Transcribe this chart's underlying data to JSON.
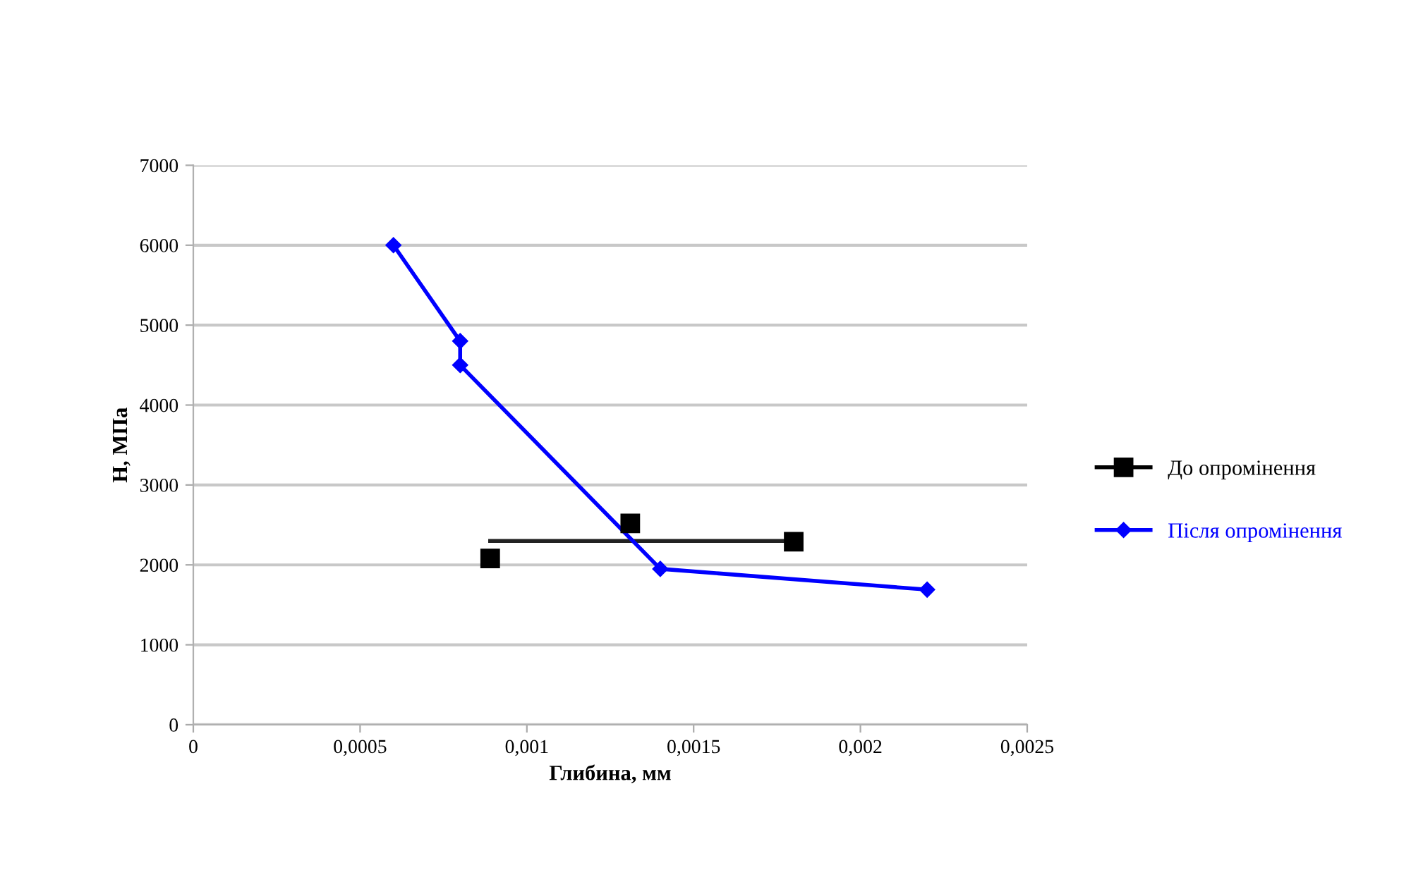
{
  "chart_data": {
    "type": "line",
    "xlabel": "Глибина, мм",
    "ylabel": "H, МПа",
    "xlim": [
      0,
      0.0025
    ],
    "xticks": [
      0,
      {
        "value": 0.0005,
        "label": "0,0005"
      },
      {
        "value": 0.001,
        "label": "0,001"
      },
      {
        "value": 0.0015,
        "label": "0,0015"
      },
      {
        "value": 0.002,
        "label": "0,002"
      },
      {
        "value": 0.0025,
        "label": "0,0025"
      }
    ],
    "ylim": [
      0,
      7000
    ],
    "yticks": [
      0,
      1000,
      2000,
      3000,
      4000,
      5000,
      6000,
      7000
    ],
    "grid": "y",
    "legend": "right",
    "series": [
      {
        "name": "До опромінення",
        "type": "scatter",
        "marker": "square",
        "color": "#000000",
        "x": [
          0.00089,
          0.00131,
          0.0018
        ],
        "values": [
          2080,
          2520,
          2290
        ]
      },
      {
        "marker": "none",
        "color": "#222222",
        "x": [
          0.00089,
          0.0018
        ],
        "values": [
          2300,
          2300
        ]
      },
      {
        "name": "Після опромінення",
        "marker": "diamond",
        "color": "#0000ff",
        "x": [
          0.0006,
          0.0008,
          0.0008,
          0.0014,
          0.0022
        ],
        "values": [
          6000,
          4800,
          4500,
          1950,
          1690
        ]
      }
    ]
  }
}
